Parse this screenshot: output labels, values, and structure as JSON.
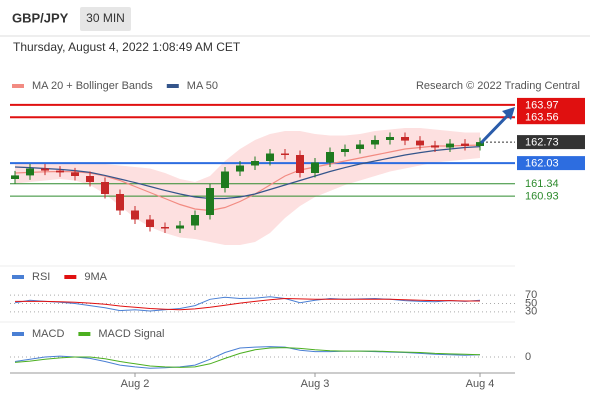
{
  "header": {
    "symbol": "GBP/JPY",
    "timeframe": "30 MIN",
    "timestamp": "Thursday, August 4, 2022 1:08:49 AM CET"
  },
  "chart_data": [
    {
      "type": "candlestick",
      "source": "Research © 2022 Trading Central",
      "up_color": "#1f7a1f",
      "down_color": "#c62828",
      "open": [
        161.5,
        161.62,
        161.85,
        161.78,
        161.72,
        161.6,
        161.4,
        161.0,
        160.45,
        160.15,
        159.9,
        159.85,
        159.95,
        160.3,
        161.2,
        161.75,
        161.95,
        162.1,
        162.35,
        162.3,
        161.7,
        162.05,
        162.4,
        162.5,
        162.65,
        162.8,
        162.9,
        162.78,
        162.62,
        162.55,
        162.68,
        162.6
      ],
      "high": [
        161.77,
        162.0,
        162.0,
        161.93,
        161.87,
        161.75,
        161.55,
        161.15,
        160.6,
        160.3,
        160.05,
        160.1,
        160.45,
        161.35,
        161.9,
        162.1,
        162.25,
        162.5,
        162.5,
        162.45,
        162.2,
        162.55,
        162.65,
        162.8,
        162.95,
        163.05,
        163.05,
        162.93,
        162.77,
        162.83,
        162.83,
        162.88
      ],
      "low": [
        161.35,
        161.47,
        161.63,
        161.57,
        161.45,
        161.25,
        160.85,
        160.3,
        160.0,
        159.75,
        159.7,
        159.7,
        159.8,
        160.15,
        161.05,
        161.6,
        161.8,
        161.95,
        162.15,
        161.55,
        161.55,
        161.9,
        162.25,
        162.35,
        162.5,
        162.65,
        162.63,
        162.47,
        162.4,
        162.4,
        162.45,
        162.45
      ],
      "close": [
        161.62,
        161.85,
        161.78,
        161.72,
        161.6,
        161.4,
        161.0,
        160.45,
        160.15,
        159.9,
        159.85,
        159.95,
        160.3,
        161.2,
        161.75,
        161.95,
        162.1,
        162.35,
        162.3,
        161.7,
        162.05,
        162.4,
        162.5,
        162.65,
        162.8,
        162.9,
        162.78,
        162.62,
        162.55,
        162.68,
        162.6,
        162.73
      ],
      "series": [
        {
          "name": "MA 20 + Bollinger Bands",
          "color": "#f28b82",
          "values": [
            161.7,
            161.72,
            161.74,
            161.75,
            161.74,
            161.7,
            161.6,
            161.45,
            161.25,
            161.05,
            160.85,
            160.65,
            160.5,
            160.45,
            160.55,
            160.75,
            161.0,
            161.3,
            161.6,
            161.8,
            161.9,
            162.0,
            162.1,
            162.2,
            162.3,
            162.4,
            162.5,
            162.55,
            162.6,
            162.6,
            162.62,
            162.63
          ],
          "upper": [
            162.05,
            162.05,
            162.05,
            162.0,
            162.0,
            162.0,
            162.0,
            161.95,
            161.9,
            161.85,
            161.7,
            161.5,
            161.4,
            161.6,
            162.1,
            162.5,
            162.8,
            163.0,
            163.1,
            163.1,
            163.0,
            162.95,
            162.95,
            163.0,
            163.1,
            163.15,
            163.2,
            163.2,
            163.15,
            163.1,
            163.05,
            163.05
          ],
          "lower": [
            161.35,
            161.4,
            161.45,
            161.5,
            161.45,
            161.3,
            161.0,
            160.6,
            160.2,
            159.9,
            159.7,
            159.55,
            159.5,
            159.4,
            159.3,
            159.3,
            159.4,
            159.7,
            160.2,
            160.6,
            160.9,
            161.1,
            161.3,
            161.45,
            161.6,
            161.75,
            161.85,
            161.95,
            162.05,
            162.1,
            162.15,
            162.2
          ],
          "band_color": "#fde0e0"
        },
        {
          "name": "MA 50",
          "color": "#34558b",
          "values": [
            161.9,
            161.88,
            161.85,
            161.82,
            161.78,
            161.72,
            161.62,
            161.5,
            161.38,
            161.25,
            161.12,
            161.0,
            160.9,
            160.85,
            160.85,
            160.9,
            161.0,
            161.15,
            161.3,
            161.45,
            161.6,
            161.75,
            161.88,
            162.0,
            162.1,
            162.2,
            162.3,
            162.38,
            162.45,
            162.5,
            162.55,
            162.58
          ]
        }
      ],
      "levels": [
        {
          "value": 163.97,
          "color": "#e01010",
          "boxed": true,
          "line": "full"
        },
        {
          "value": 163.56,
          "color": "#e01010",
          "boxed": true,
          "line": "full"
        },
        {
          "value": 162.73,
          "color": "#333333",
          "boxed": true,
          "line": "dotted"
        },
        {
          "value": 162.03,
          "color": "#2d6de0",
          "boxed": true,
          "line": "full"
        },
        {
          "value": 161.34,
          "color": "#2e8b2e",
          "boxed": false,
          "line": "full"
        },
        {
          "value": 160.93,
          "color": "#2e8b2e",
          "boxed": false,
          "line": "full"
        }
      ],
      "ylim": [
        158.8,
        164.3
      ]
    },
    {
      "type": "line",
      "series": [
        {
          "name": "RSI",
          "color": "#4a7fd4",
          "values": [
            52,
            58,
            55,
            53,
            50,
            45,
            40,
            33,
            35,
            32,
            35,
            38,
            45,
            60,
            65,
            62,
            63,
            66,
            62,
            52,
            58,
            62,
            60,
            61,
            62,
            60,
            57,
            55,
            54,
            57,
            55,
            58
          ]
        },
        {
          "name": "9MA",
          "color": "#e01010",
          "values": [
            55,
            55,
            55,
            54,
            53,
            51,
            48,
            44,
            41,
            38,
            36,
            35,
            37,
            41,
            46,
            51,
            55,
            59,
            62,
            61,
            60,
            60,
            60,
            60,
            60,
            60,
            59,
            58,
            57,
            57,
            56,
            56
          ]
        }
      ],
      "ylim": [
        20,
        80
      ],
      "yticks": [
        70,
        50,
        30
      ]
    },
    {
      "type": "line",
      "series": [
        {
          "name": "MACD",
          "color": "#4a7fd4",
          "values": [
            -0.1,
            -0.05,
            0,
            0.02,
            0,
            -0.03,
            -0.1,
            -0.18,
            -0.22,
            -0.25,
            -0.24,
            -0.22,
            -0.18,
            -0.05,
            0.1,
            0.2,
            0.22,
            0.23,
            0.22,
            0.15,
            0.12,
            0.12,
            0.13,
            0.13,
            0.12,
            0.11,
            0.1,
            0.08,
            0.06,
            0.05,
            0.04,
            0.05
          ]
        },
        {
          "name": "MACD Signal",
          "color": "#4caf20",
          "values": [
            -0.12,
            -0.09,
            -0.05,
            -0.02,
            0,
            0,
            -0.04,
            -0.1,
            -0.15,
            -0.2,
            -0.22,
            -0.23,
            -0.22,
            -0.15,
            -0.03,
            0.08,
            0.16,
            0.2,
            0.21,
            0.19,
            0.16,
            0.14,
            0.13,
            0.13,
            0.13,
            0.12,
            0.11,
            0.1,
            0.08,
            0.07,
            0.06,
            0.05
          ]
        }
      ],
      "ylim": [
        -0.4,
        0.4
      ],
      "yticks": [
        0
      ],
      "categories": [
        null,
        null,
        null,
        null,
        null,
        null,
        null,
        null,
        "Aug 2",
        null,
        null,
        null,
        null,
        null,
        null,
        null,
        null,
        null,
        null,
        null,
        "Aug 3",
        null,
        null,
        null,
        null,
        null,
        null,
        null,
        null,
        null,
        null,
        "Aug 4"
      ]
    }
  ]
}
